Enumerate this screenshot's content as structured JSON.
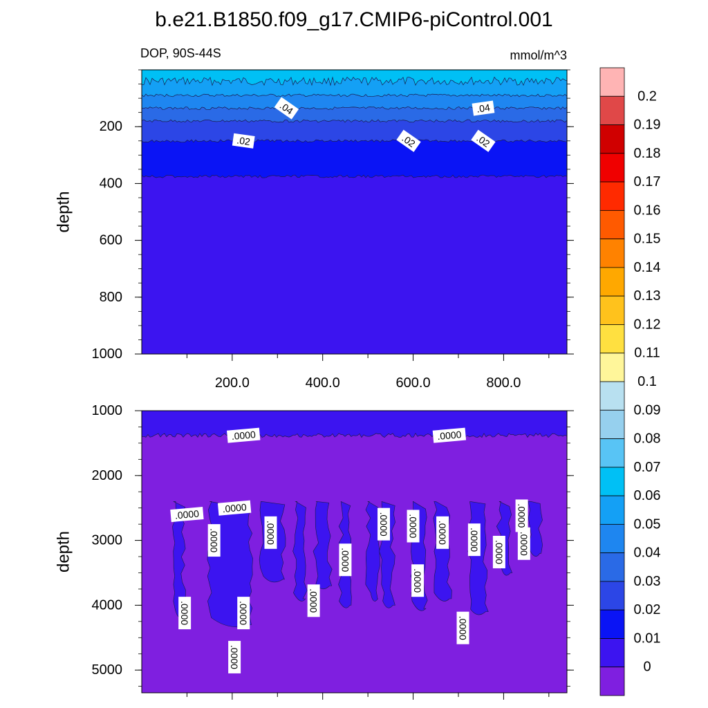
{
  "title": "b.e21.B1850.f09_g17.CMIP6-piControl.001",
  "subtitle_left": "DOP, 90S-44S",
  "subtitle_right": "mmol/m^3",
  "colors": {
    "c0": "#7f1fe0",
    "c1": "#3c14f0",
    "c2": "#0a14f5",
    "c3": "#2c46e6",
    "c4": "#2a6ae6",
    "c5": "#1e86f0",
    "c6": "#14a0f5",
    "c7": "#00c0f5",
    "c8": "#58c4f5",
    "c9": "#96d0ee",
    "c10": "#b8e0f0",
    "c11": "#fff69a",
    "c12": "#ffe040",
    "c13": "#ffc21c",
    "c14": "#ffa800",
    "c15": "#ff8200",
    "c16": "#ff5a00",
    "c17": "#ff2a00",
    "c18": "#f00000",
    "c19": "#d00000",
    "c20": "#e04848",
    "c21": "#ffb4b4"
  },
  "chart_data": [
    {
      "type": "heatmap",
      "panel": "upper",
      "xlabel": "",
      "ylabel": "depth",
      "xlim": [
        0,
        940
      ],
      "ylim": [
        1000,
        0
      ],
      "x_ticks": [
        "200.0",
        "400.0",
        "600.0",
        "800.0"
      ],
      "x_tick_values": [
        200,
        400,
        600,
        800
      ],
      "y_ticks": [
        "200",
        "400",
        "600",
        "800",
        "1000"
      ],
      "y_tick_values": [
        200,
        400,
        600,
        800,
        1000
      ],
      "bands": [
        {
          "top": 0,
          "bottom": 40,
          "color": "c7"
        },
        {
          "top": 40,
          "bottom": 90,
          "color": "c6"
        },
        {
          "top": 90,
          "bottom": 135,
          "color": "c5"
        },
        {
          "top": 135,
          "bottom": 180,
          "color": "c4"
        },
        {
          "top": 180,
          "bottom": 250,
          "color": "c3"
        },
        {
          "top": 250,
          "bottom": 375,
          "color": "c2"
        },
        {
          "top": 375,
          "bottom": 1000,
          "color": "c1"
        }
      ],
      "contour_labels": [
        {
          "text": ".04",
          "x": 320,
          "y": 135
        },
        {
          "text": ".04",
          "x": 755,
          "y": 135
        },
        {
          "text": ".02",
          "x": 225,
          "y": 250
        },
        {
          "text": ".02",
          "x": 590,
          "y": 250
        },
        {
          "text": ".02",
          "x": 755,
          "y": 250
        }
      ]
    },
    {
      "type": "heatmap",
      "panel": "lower",
      "xlabel": "",
      "ylabel": "depth",
      "xlim": [
        0,
        940
      ],
      "ylim": [
        5350,
        1000
      ],
      "y_ticks": [
        "1000",
        "2000",
        "3000",
        "4000",
        "5000"
      ],
      "y_tick_values": [
        1000,
        2000,
        3000,
        4000,
        5000
      ],
      "bands": [
        {
          "top": 1000,
          "bottom": 1380,
          "color": "c1"
        },
        {
          "top": 1380,
          "bottom": 5350,
          "color": "c0"
        }
      ],
      "contour_labels": [
        {
          "text": ".0000",
          "x": 225,
          "y": 1380
        },
        {
          "text": ".0000",
          "x": 680,
          "y": 1380
        },
        {
          "text": ".0000",
          "x": 100,
          "y": 2600
        },
        {
          "text": ".0000",
          "x": 205,
          "y": 2500
        },
        {
          "text": ".0000",
          "x": 160,
          "y": 3000
        },
        {
          "text": ".0000",
          "x": 285,
          "y": 2880
        },
        {
          "text": ".0000",
          "x": 535,
          "y": 2750
        },
        {
          "text": ".0000",
          "x": 600,
          "y": 2780
        },
        {
          "text": ".0000",
          "x": 665,
          "y": 2880
        },
        {
          "text": ".0000",
          "x": 735,
          "y": 2990
        },
        {
          "text": ".0000",
          "x": 790,
          "y": 3180
        },
        {
          "text": ".0000",
          "x": 845,
          "y": 3050
        },
        {
          "text": ".0000",
          "x": 840,
          "y": 2620
        },
        {
          "text": ".0000",
          "x": 450,
          "y": 3300
        },
        {
          "text": ".0000",
          "x": 610,
          "y": 3620
        },
        {
          "text": ".0000",
          "x": 380,
          "y": 3930
        },
        {
          "text": ".0000",
          "x": 95,
          "y": 4120
        },
        {
          "text": ".0000",
          "x": 225,
          "y": 4120
        },
        {
          "text": ".0000",
          "x": 710,
          "y": 4350
        },
        {
          "text": ".0000",
          "x": 205,
          "y": 4800
        }
      ],
      "columns": [
        {
          "x1": 70,
          "x2": 92,
          "y2": 4150
        },
        {
          "x1": 150,
          "x2": 240,
          "y2": 4300
        },
        {
          "x1": 265,
          "x2": 312,
          "y2": 3600
        },
        {
          "x1": 340,
          "x2": 362,
          "y2": 3900
        },
        {
          "x1": 385,
          "x2": 415,
          "y2": 3700
        },
        {
          "x1": 440,
          "x2": 460,
          "y2": 4000
        },
        {
          "x1": 500,
          "x2": 522,
          "y2": 3900
        },
        {
          "x1": 530,
          "x2": 555,
          "y2": 4000
        },
        {
          "x1": 600,
          "x2": 628,
          "y2": 4050
        },
        {
          "x1": 650,
          "x2": 680,
          "y2": 3900
        },
        {
          "x1": 725,
          "x2": 760,
          "y2": 4100
        },
        {
          "x1": 790,
          "x2": 815,
          "y2": 3500
        },
        {
          "x1": 860,
          "x2": 880,
          "y2": 3200
        }
      ]
    }
  ],
  "colorbar": {
    "labels": [
      "0.2",
      "0.19",
      "0.18",
      "0.17",
      "0.16",
      "0.15",
      "0.14",
      "0.13",
      "0.12",
      "0.11",
      "0.1",
      "0.09",
      "0.08",
      "0.07",
      "0.06",
      "0.05",
      "0.04",
      "0.03",
      "0.02",
      "0.01",
      "0"
    ],
    "colors_top_to_bottom": [
      "c21",
      "c20",
      "c19",
      "c18",
      "c17",
      "c16",
      "c15",
      "c14",
      "c13",
      "c12",
      "c11",
      "c10",
      "c9",
      "c8",
      "c7",
      "c6",
      "c5",
      "c4",
      "c3",
      "c2",
      "c1",
      "c0"
    ]
  }
}
